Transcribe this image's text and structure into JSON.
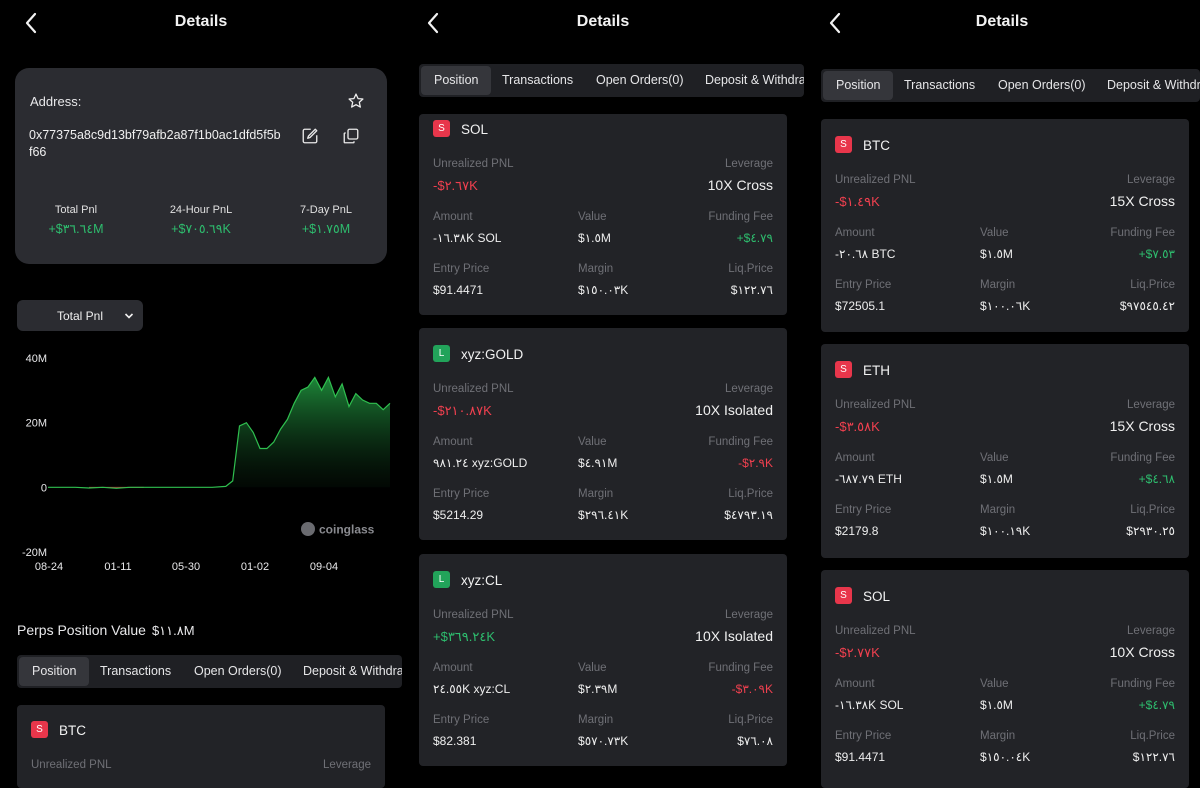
{
  "screen1": {
    "title": "Details",
    "address_label": "Address:",
    "address": "0x77375a8c9d13bf79afb2a87f1b0ac1dfd5f5bf66",
    "stats": [
      {
        "label": "Total Pnl",
        "value": "+$٣٦.٦٤M"
      },
      {
        "label": "24-Hour PnL",
        "value": "+$٧٠٥.٦٩K"
      },
      {
        "label": "7-Day PnL",
        "value": "+$١.٧٥M"
      }
    ],
    "select_value": "Total Pnl",
    "chart_data": {
      "type": "area",
      "y_ticks": [
        "40M",
        "20M",
        "0",
        "-20M"
      ],
      "x_ticks": [
        "08-24",
        "01-11",
        "05-30",
        "01-02",
        "09-04"
      ],
      "ylim": [
        -20,
        40
      ],
      "y_unit": "M",
      "x": [
        0,
        4,
        8,
        12,
        16,
        20,
        24,
        28,
        32,
        36,
        40,
        44,
        48,
        52,
        54,
        56,
        58,
        60,
        62,
        64,
        66,
        68,
        70,
        72,
        74,
        76,
        78,
        80,
        82,
        84,
        86,
        88,
        90,
        92,
        94,
        96,
        98,
        100
      ],
      "values": [
        0,
        0,
        0,
        -0.2,
        0,
        -0.3,
        0,
        0,
        0,
        0,
        0,
        0,
        0,
        0.3,
        2,
        19,
        20,
        17,
        12,
        12,
        14,
        18,
        21,
        26,
        30,
        31,
        34,
        30,
        34,
        28,
        32,
        25,
        29,
        27,
        26,
        26,
        24,
        26
      ],
      "watermark": "coinglass"
    },
    "perps_label": "Perps Position Value",
    "perps_value": "$١١.٨M",
    "tabs": [
      "Position",
      "Transactions",
      "Open Orders(0)",
      "Deposit & Withdra"
    ],
    "partial_card": {
      "badge": "S",
      "symbol": "BTC",
      "pnl_label": "Unrealized PNL",
      "lev_label": "Leverage"
    }
  },
  "screen2": {
    "title": "Details",
    "tabs": [
      "Position",
      "Transactions",
      "Open Orders(0)",
      "Deposit & Withdra"
    ],
    "cards": [
      {
        "badge": "S",
        "symbol": "SOL",
        "pnl": "-$٢.٦٧K",
        "leverage": "10X Cross",
        "amount": "-١٦.٣٨K SOL",
        "value": "$١.٥M",
        "funding": "+$٤.٧٩",
        "entry": "$91.4471",
        "margin": "$١٥٠.٠٣K",
        "liq": "$١٢٢.٧٦"
      },
      {
        "badge": "L",
        "symbol": "xyz:GOLD",
        "pnl": "-$٢١٠.٨٧K",
        "leverage": "10X Isolated",
        "amount": "٩٨١.٢٤ xyz:GOLD",
        "value": "$٤.٩١M",
        "funding": "-$٢.٩K",
        "entry": "$5214.29",
        "margin": "$٢٩٦.٤١K",
        "liq": "$٤٧٩٣.١٩"
      },
      {
        "badge": "L",
        "symbol": "xyz:CL",
        "pnl": "+$٣٦٩.٢٤K",
        "leverage": "10X Isolated",
        "amount": "٢٤.٥٥K xyz:CL",
        "value": "$٢.٣٩M",
        "funding": "-$٣.٠٩K",
        "entry": "$82.381",
        "margin": "$٥٧٠.٧٣K",
        "liq": "$٧٦.٠٨"
      }
    ]
  },
  "screen3": {
    "title": "Details",
    "tabs": [
      "Position",
      "Transactions",
      "Open Orders(0)",
      "Deposit & Withdra"
    ],
    "cards": [
      {
        "badge": "S",
        "symbol": "BTC",
        "pnl": "-$١.٤٩K",
        "leverage": "15X Cross",
        "amount": "-٢٠.٦٨ BTC",
        "value": "$١.٥M",
        "funding": "+$٧.٥٣",
        "entry": "$72505.1",
        "margin": "$١٠٠.٠٦K",
        "liq": "$٩٧٥٤٥.٤٢"
      },
      {
        "badge": "S",
        "symbol": "ETH",
        "pnl": "-$٣.٥٨K",
        "leverage": "15X Cross",
        "amount": "-٦٨٧.٧٩ ETH",
        "value": "$١.٥M",
        "funding": "+$٤.٦٨",
        "entry": "$2179.8",
        "margin": "$١٠٠.١٩K",
        "liq": "$٢٩٣٠.٢٥"
      },
      {
        "badge": "S",
        "symbol": "SOL",
        "pnl": "-$٢.٧٧K",
        "leverage": "10X Cross",
        "amount": "-١٦.٣٨K SOL",
        "value": "$١.٥M",
        "funding": "+$٤.٧٩",
        "entry": "$91.4471",
        "margin": "$١٥٠.٠٤K",
        "liq": "$١٢٢.٧٦"
      }
    ]
  },
  "labels": {
    "pnl": "Unrealized PNL",
    "leverage": "Leverage",
    "amount": "Amount",
    "value": "Value",
    "funding": "Funding Fee",
    "entry": "Entry Price",
    "margin": "Margin",
    "liq": "Liq.Price"
  },
  "colors": {
    "background": "#000000",
    "card": "#222327",
    "positive": "#2ebd6e",
    "negative": "#f0404f",
    "short_badge": "#e8364b",
    "long_badge": "#22a35a"
  }
}
